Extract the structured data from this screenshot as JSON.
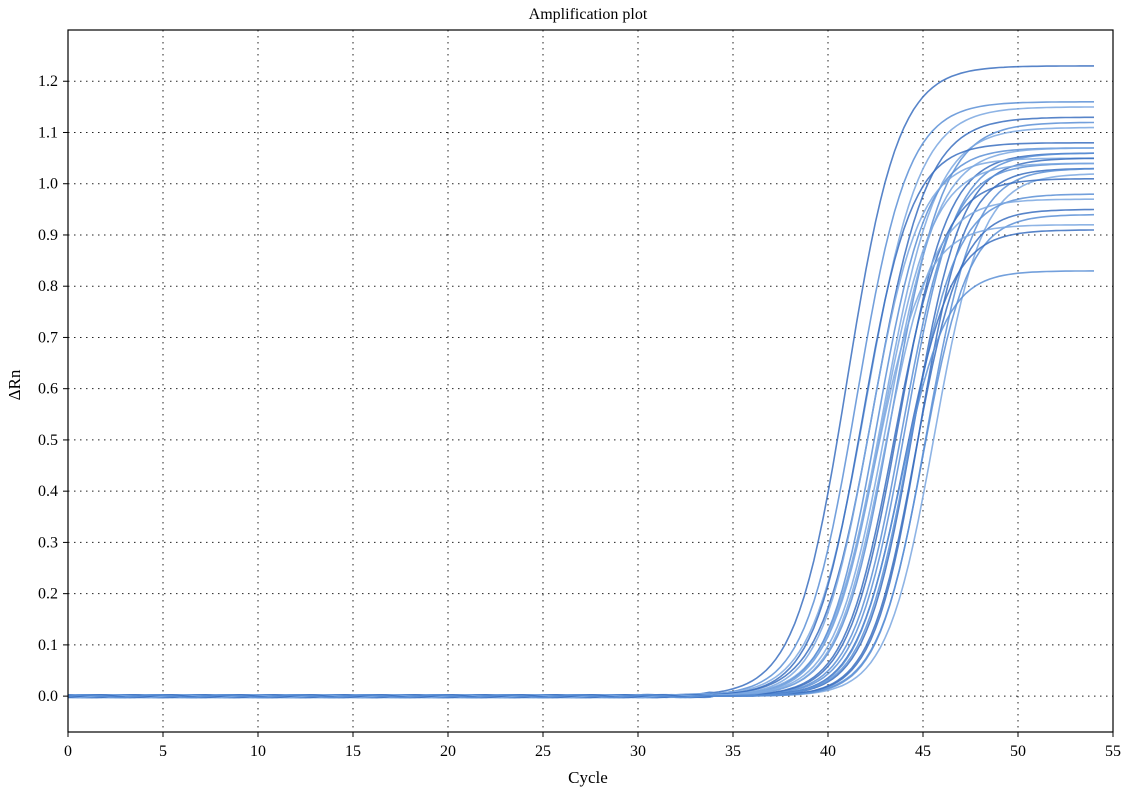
{
  "chart_data": {
    "type": "line",
    "title": "Amplification plot",
    "xlabel": "Cycle",
    "ylabel": "ΔRn",
    "xlim": [
      0,
      55
    ],
    "ylim": [
      -0.07,
      1.3
    ],
    "xticks": [
      0,
      5,
      10,
      15,
      20,
      25,
      30,
      35,
      40,
      45,
      50,
      55
    ],
    "xtick_labels": [
      "0",
      "5",
      "10",
      "15",
      "20",
      "25",
      "30",
      "35",
      "40",
      "45",
      "50",
      "55"
    ],
    "yticks": [
      0.0,
      0.1,
      0.2,
      0.3,
      0.4,
      0.5,
      0.6,
      0.7,
      0.8,
      0.9,
      1.0,
      1.1,
      1.2
    ],
    "ytick_labels": [
      "0.0",
      "0.1",
      "0.2",
      "0.3",
      "0.4",
      "0.5",
      "0.6",
      "0.7",
      "0.8",
      "0.9",
      "1.0",
      "1.1",
      "1.2"
    ],
    "grid": "dotted",
    "line_color": "#4a7fc8",
    "x_range": [
      0,
      54
    ],
    "curve_model": "sigmoid",
    "series": [
      {
        "plateau": 1.23,
        "midpoint": 41.0,
        "slope": 1.35
      },
      {
        "plateau": 1.16,
        "midpoint": 41.5,
        "slope": 1.35
      },
      {
        "plateau": 1.15,
        "midpoint": 42.0,
        "slope": 1.4
      },
      {
        "plateau": 1.13,
        "midpoint": 42.4,
        "slope": 1.4
      },
      {
        "plateau": 1.12,
        "midpoint": 43.4,
        "slope": 1.35
      },
      {
        "plateau": 1.11,
        "midpoint": 42.9,
        "slope": 1.4
      },
      {
        "plateau": 1.08,
        "midpoint": 41.8,
        "slope": 1.3
      },
      {
        "plateau": 1.07,
        "midpoint": 42.6,
        "slope": 1.3
      },
      {
        "plateau": 1.07,
        "midpoint": 43.1,
        "slope": 1.35
      },
      {
        "plateau": 1.06,
        "midpoint": 43.7,
        "slope": 1.3
      },
      {
        "plateau": 1.06,
        "midpoint": 44.1,
        "slope": 1.3
      },
      {
        "plateau": 1.05,
        "midpoint": 42.2,
        "slope": 1.3
      },
      {
        "plateau": 1.05,
        "midpoint": 44.5,
        "slope": 1.25
      },
      {
        "plateau": 1.04,
        "midpoint": 43.9,
        "slope": 1.3
      },
      {
        "plateau": 1.04,
        "midpoint": 42.8,
        "slope": 1.35
      },
      {
        "plateau": 1.03,
        "midpoint": 44.8,
        "slope": 1.2
      },
      {
        "plateau": 1.03,
        "midpoint": 45.2,
        "slope": 1.25
      },
      {
        "plateau": 1.02,
        "midpoint": 45.6,
        "slope": 1.25
      },
      {
        "plateau": 1.01,
        "midpoint": 43.5,
        "slope": 1.3
      },
      {
        "plateau": 0.98,
        "midpoint": 44.3,
        "slope": 1.25
      },
      {
        "plateau": 0.97,
        "midpoint": 43.0,
        "slope": 1.3
      },
      {
        "plateau": 0.95,
        "midpoint": 44.6,
        "slope": 1.2
      },
      {
        "plateau": 0.94,
        "midpoint": 45.0,
        "slope": 1.2
      },
      {
        "plateau": 0.92,
        "midpoint": 42.5,
        "slope": 1.3
      },
      {
        "plateau": 0.91,
        "midpoint": 44.0,
        "slope": 1.25
      },
      {
        "plateau": 0.83,
        "midpoint": 43.8,
        "slope": 1.2
      }
    ]
  }
}
